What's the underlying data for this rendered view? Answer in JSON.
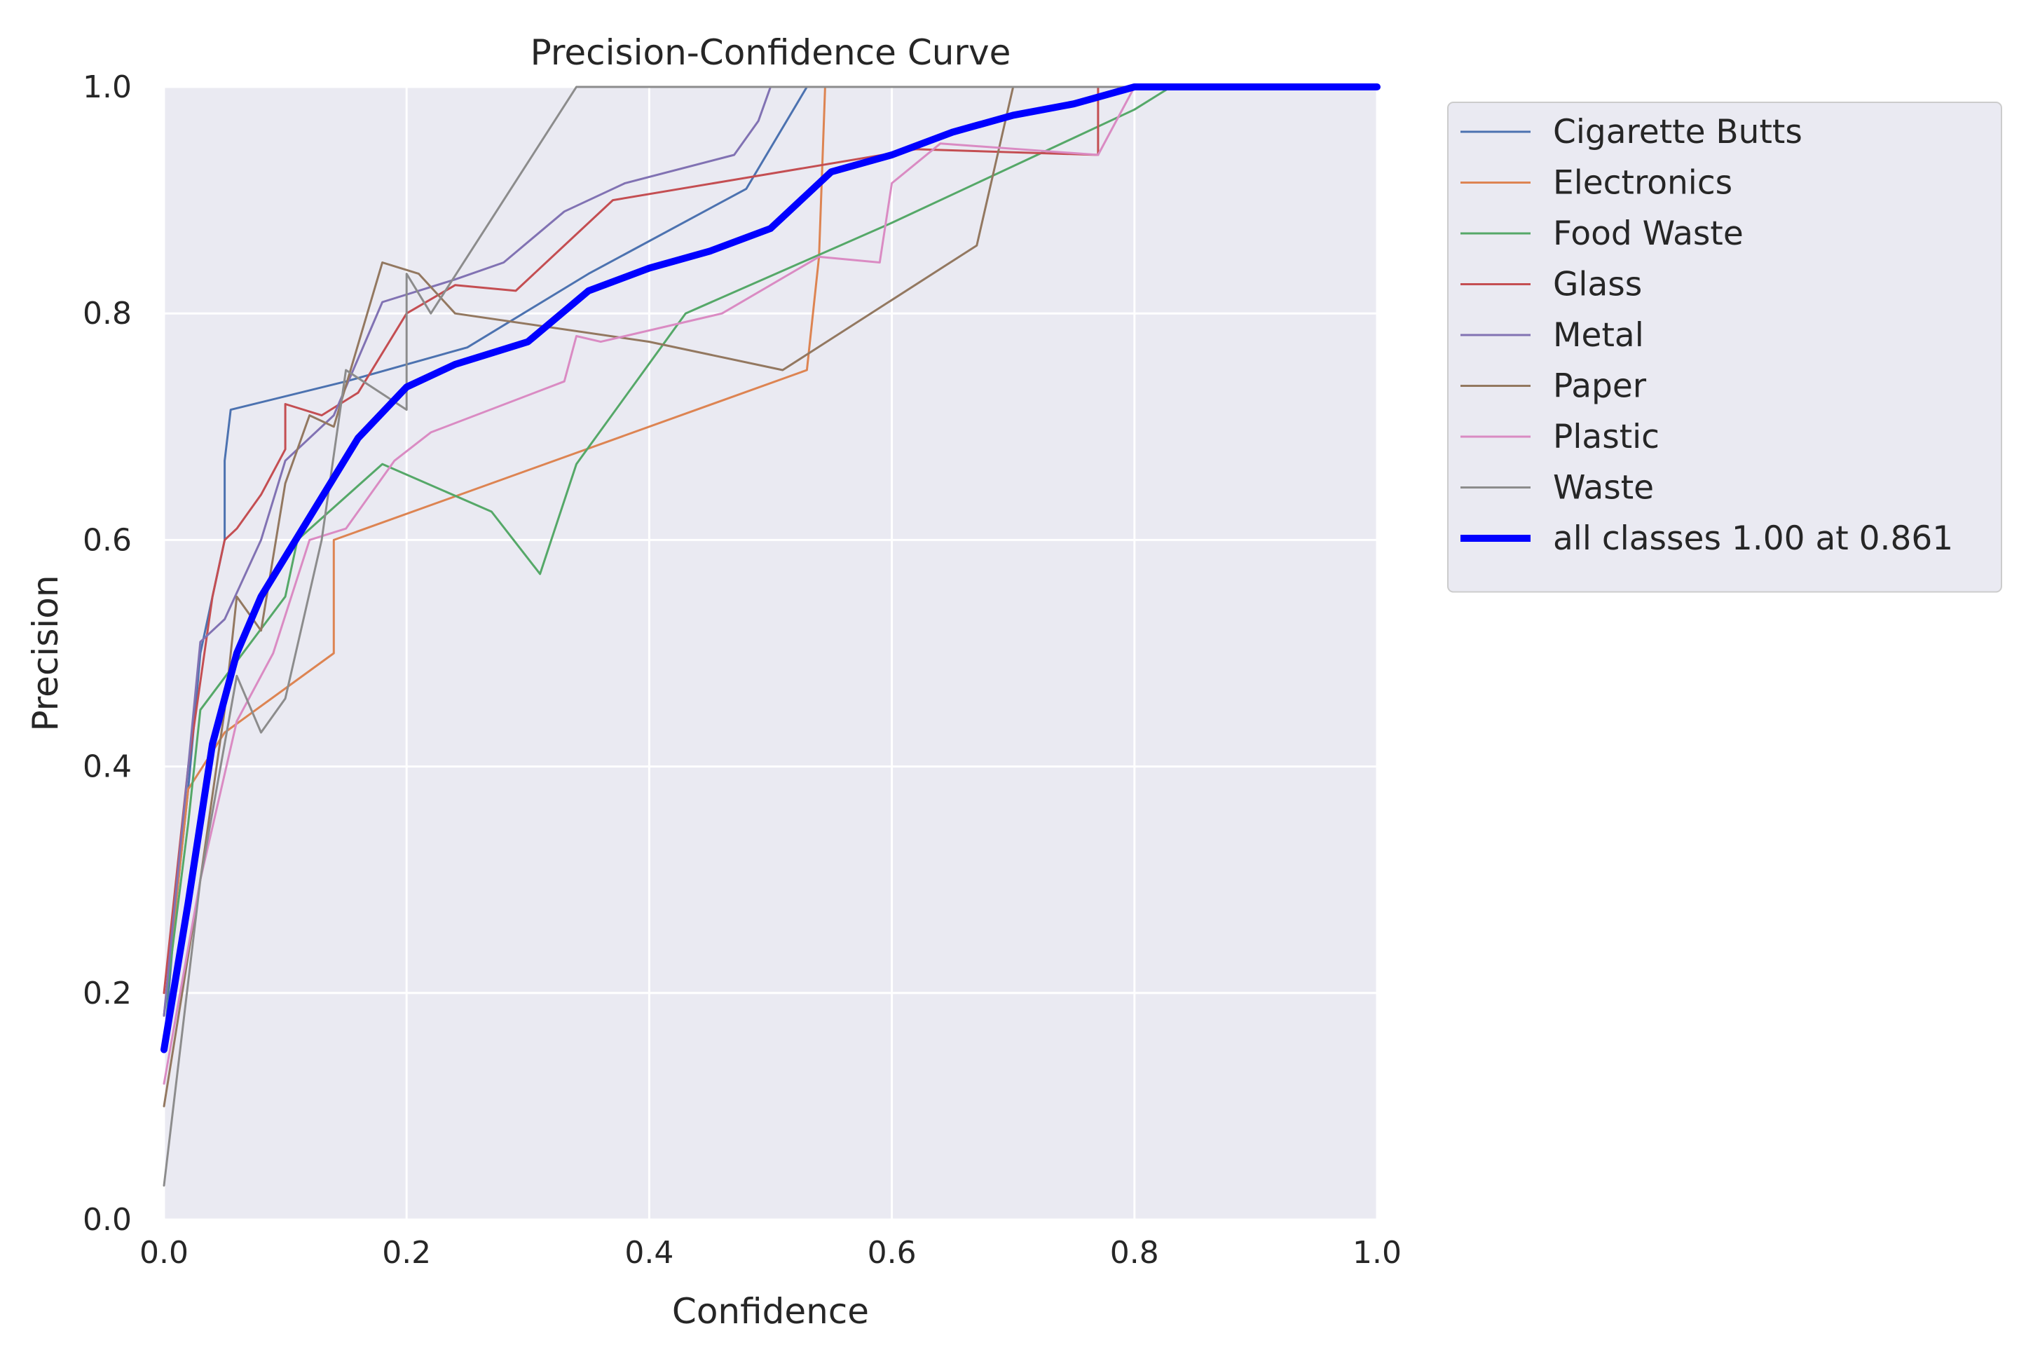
{
  "chart_data": {
    "type": "line",
    "title": "Precision-Confidence Curve",
    "xlabel": "Confidence",
    "ylabel": "Precision",
    "xlim": [
      0,
      1
    ],
    "ylim": [
      0,
      1
    ],
    "grid": true,
    "legend_position": "outside-right-top",
    "x_ticks": [
      "0.0",
      "0.2",
      "0.4",
      "0.6",
      "0.8",
      "1.0"
    ],
    "y_ticks": [
      "0.0",
      "0.2",
      "0.4",
      "0.6",
      "0.8",
      "1.0"
    ],
    "series": [
      {
        "name": "Cigarette Butts",
        "color": "#4c72b0",
        "points": [
          [
            0,
            0.15
          ],
          [
            0.01,
            0.28
          ],
          [
            0.02,
            0.38
          ],
          [
            0.03,
            0.5
          ],
          [
            0.04,
            0.55
          ],
          [
            0.05,
            0.6
          ],
          [
            0.05,
            0.67
          ],
          [
            0.055,
            0.715
          ],
          [
            0.15,
            0.74
          ],
          [
            0.25,
            0.77
          ],
          [
            0.35,
            0.835
          ],
          [
            0.48,
            0.91
          ],
          [
            0.53,
            1.0
          ],
          [
            1.0,
            1.0
          ]
        ]
      },
      {
        "name": "Electronics",
        "color": "#dd8452",
        "points": [
          [
            0,
            0.18
          ],
          [
            0.02,
            0.38
          ],
          [
            0.05,
            0.43
          ],
          [
            0.14,
            0.5
          ],
          [
            0.14,
            0.6
          ],
          [
            0.53,
            0.75
          ],
          [
            0.54,
            0.85
          ],
          [
            0.545,
            1.0
          ],
          [
            1.0,
            1.0
          ]
        ]
      },
      {
        "name": "Food Waste",
        "color": "#55a868",
        "points": [
          [
            0,
            0.18
          ],
          [
            0.02,
            0.35
          ],
          [
            0.03,
            0.45
          ],
          [
            0.1,
            0.55
          ],
          [
            0.11,
            0.6
          ],
          [
            0.18,
            0.667
          ],
          [
            0.27,
            0.625
          ],
          [
            0.31,
            0.57
          ],
          [
            0.34,
            0.667
          ],
          [
            0.43,
            0.8
          ],
          [
            0.6,
            0.88
          ],
          [
            0.8,
            0.98
          ],
          [
            0.83,
            1.0
          ],
          [
            1.0,
            1.0
          ]
        ]
      },
      {
        "name": "Glass",
        "color": "#c44e52",
        "points": [
          [
            0,
            0.2
          ],
          [
            0.02,
            0.4
          ],
          [
            0.04,
            0.55
          ],
          [
            0.05,
            0.6
          ],
          [
            0.06,
            0.61
          ],
          [
            0.08,
            0.64
          ],
          [
            0.1,
            0.68
          ],
          [
            0.1,
            0.72
          ],
          [
            0.13,
            0.71
          ],
          [
            0.16,
            0.73
          ],
          [
            0.2,
            0.8
          ],
          [
            0.24,
            0.825
          ],
          [
            0.29,
            0.82
          ],
          [
            0.37,
            0.9
          ],
          [
            0.62,
            0.945
          ],
          [
            0.77,
            0.94
          ],
          [
            0.77,
            1.0
          ],
          [
            1.0,
            1.0
          ]
        ]
      },
      {
        "name": "Metal",
        "color": "#8172b3",
        "points": [
          [
            0,
            0.18
          ],
          [
            0.02,
            0.4
          ],
          [
            0.03,
            0.51
          ],
          [
            0.05,
            0.53
          ],
          [
            0.08,
            0.6
          ],
          [
            0.1,
            0.67
          ],
          [
            0.14,
            0.71
          ],
          [
            0.18,
            0.81
          ],
          [
            0.24,
            0.83
          ],
          [
            0.28,
            0.845
          ],
          [
            0.33,
            0.89
          ],
          [
            0.38,
            0.915
          ],
          [
            0.47,
            0.94
          ],
          [
            0.49,
            0.97
          ],
          [
            0.5,
            1.0
          ],
          [
            1.0,
            1.0
          ]
        ]
      },
      {
        "name": "Paper",
        "color": "#937860",
        "points": [
          [
            0,
            0.1
          ],
          [
            0.03,
            0.3
          ],
          [
            0.05,
            0.45
          ],
          [
            0.06,
            0.55
          ],
          [
            0.08,
            0.52
          ],
          [
            0.1,
            0.65
          ],
          [
            0.12,
            0.71
          ],
          [
            0.14,
            0.7
          ],
          [
            0.18,
            0.845
          ],
          [
            0.21,
            0.835
          ],
          [
            0.24,
            0.8
          ],
          [
            0.4,
            0.775
          ],
          [
            0.51,
            0.75
          ],
          [
            0.67,
            0.86
          ],
          [
            0.7,
            1.0
          ],
          [
            1.0,
            1.0
          ]
        ]
      },
      {
        "name": "Plastic",
        "color": "#da8bc3",
        "points": [
          [
            0,
            0.12
          ],
          [
            0.03,
            0.3
          ],
          [
            0.06,
            0.44
          ],
          [
            0.09,
            0.5
          ],
          [
            0.12,
            0.6
          ],
          [
            0.15,
            0.61
          ],
          [
            0.19,
            0.67
          ],
          [
            0.22,
            0.695
          ],
          [
            0.33,
            0.74
          ],
          [
            0.34,
            0.78
          ],
          [
            0.36,
            0.775
          ],
          [
            0.46,
            0.8
          ],
          [
            0.54,
            0.85
          ],
          [
            0.59,
            0.845
          ],
          [
            0.6,
            0.915
          ],
          [
            0.64,
            0.95
          ],
          [
            0.77,
            0.94
          ],
          [
            0.8,
            1.0
          ],
          [
            1.0,
            1.0
          ]
        ]
      },
      {
        "name": "Waste",
        "color": "#8c8c8c",
        "points": [
          [
            0,
            0.03
          ],
          [
            0.03,
            0.3
          ],
          [
            0.06,
            0.48
          ],
          [
            0.08,
            0.43
          ],
          [
            0.1,
            0.46
          ],
          [
            0.13,
            0.6
          ],
          [
            0.15,
            0.75
          ],
          [
            0.2,
            0.715
          ],
          [
            0.2,
            0.835
          ],
          [
            0.22,
            0.8
          ],
          [
            0.34,
            1.0
          ],
          [
            1.0,
            1.0
          ]
        ]
      },
      {
        "name": "all classes 1.00 at 0.861",
        "color": "#0000ff",
        "emphasis": true,
        "points": [
          [
            0,
            0.15
          ],
          [
            0.02,
            0.28
          ],
          [
            0.04,
            0.42
          ],
          [
            0.06,
            0.5
          ],
          [
            0.08,
            0.55
          ],
          [
            0.12,
            0.62
          ],
          [
            0.16,
            0.69
          ],
          [
            0.2,
            0.735
          ],
          [
            0.24,
            0.755
          ],
          [
            0.3,
            0.775
          ],
          [
            0.35,
            0.82
          ],
          [
            0.4,
            0.84
          ],
          [
            0.45,
            0.855
          ],
          [
            0.5,
            0.875
          ],
          [
            0.55,
            0.925
          ],
          [
            0.6,
            0.94
          ],
          [
            0.65,
            0.96
          ],
          [
            0.7,
            0.975
          ],
          [
            0.75,
            0.985
          ],
          [
            0.8,
            1.0
          ],
          [
            0.861,
            1.0
          ],
          [
            1.0,
            1.0
          ]
        ]
      }
    ]
  }
}
